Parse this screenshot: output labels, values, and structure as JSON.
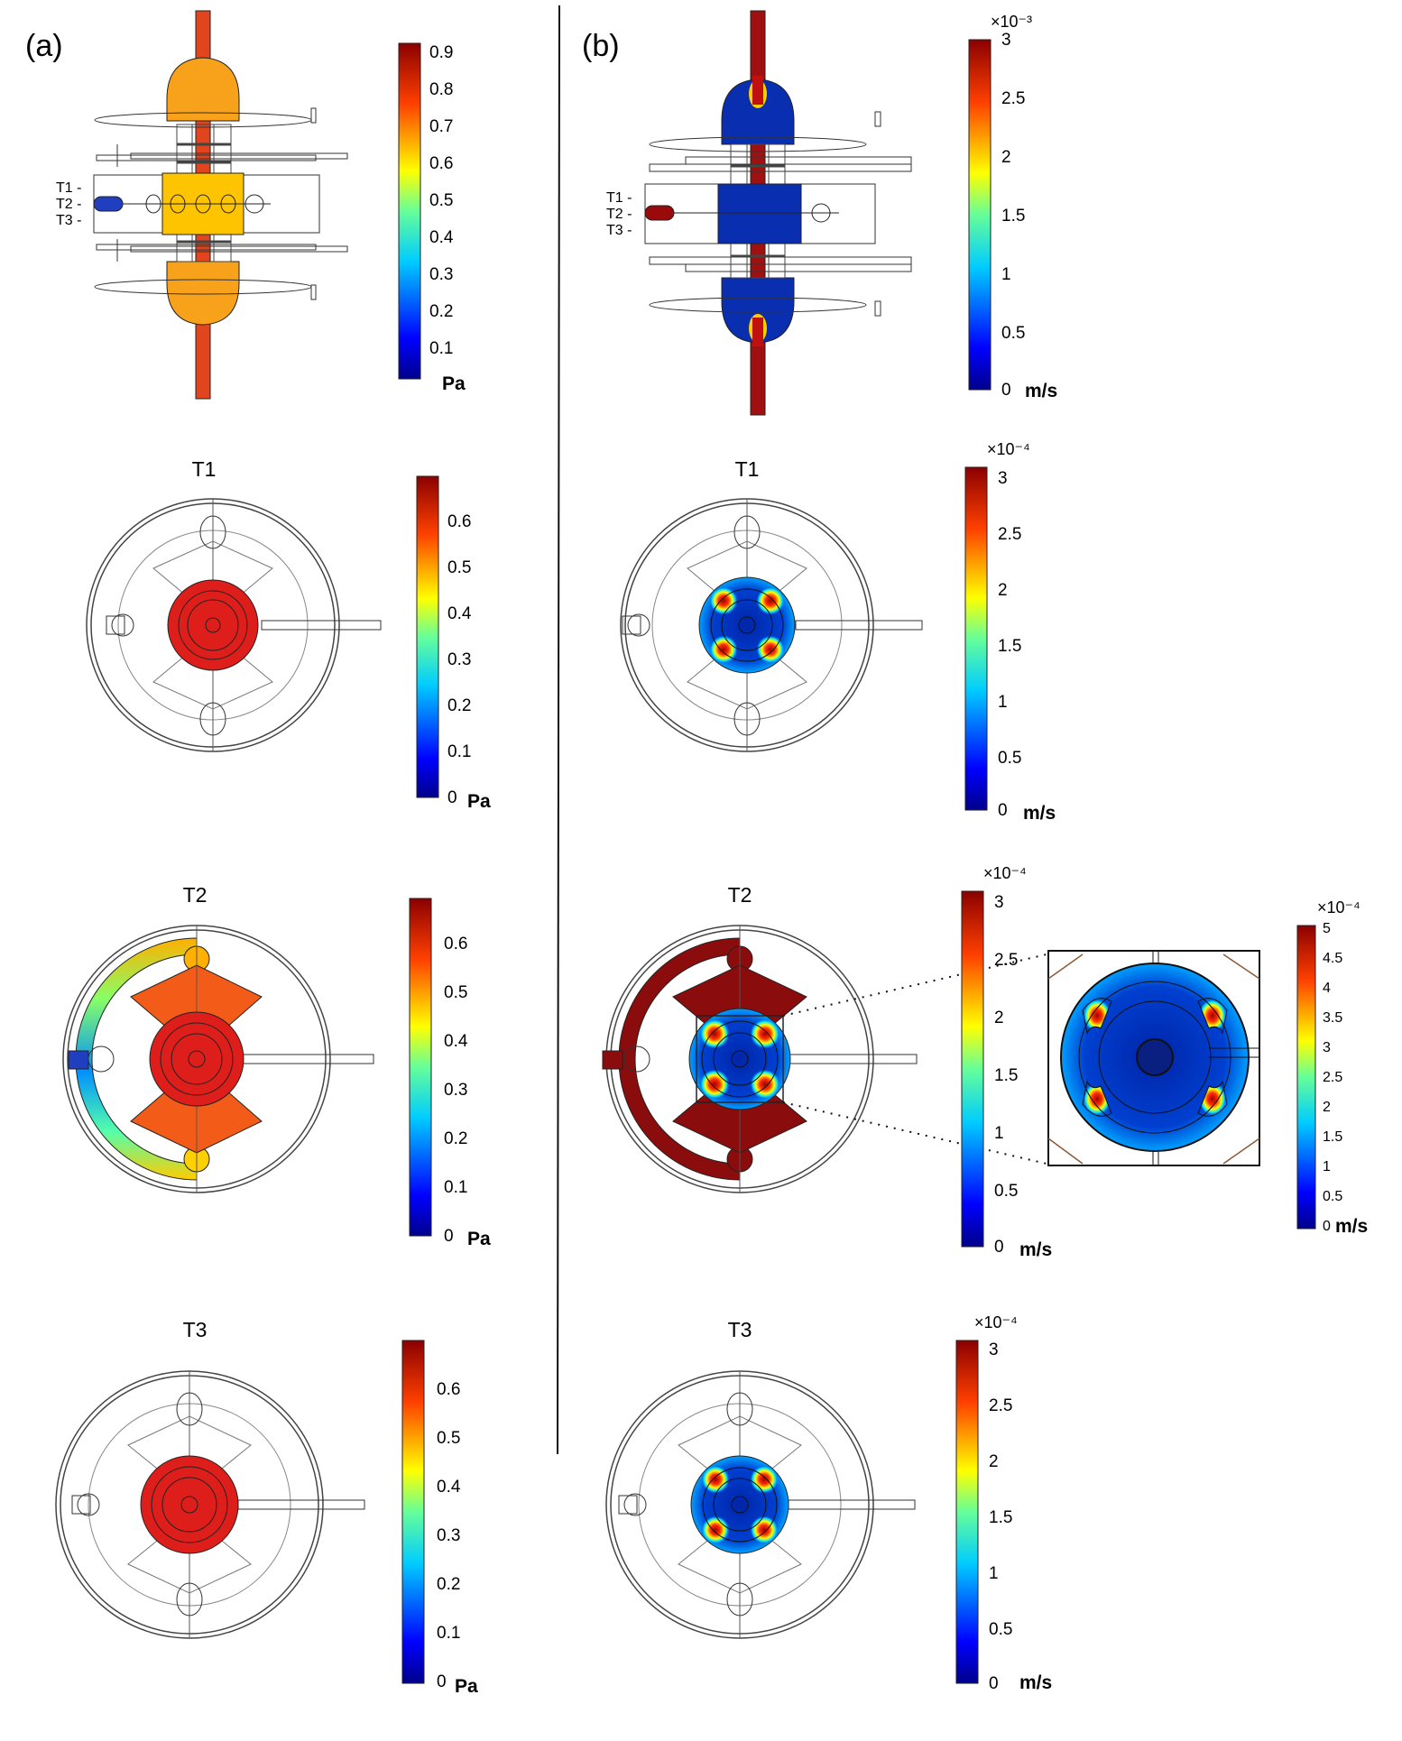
{
  "panels": {
    "a_label": "(a)",
    "b_label": "(b)"
  },
  "plane_labels": [
    "T1 -",
    "T2 -",
    "T3 -"
  ],
  "views": [
    {
      "title": "T1"
    },
    {
      "title": "T2"
    },
    {
      "title": "T3"
    }
  ],
  "colorbars": {
    "a_side": {
      "ticks": [
        "0.9",
        "0.8",
        "0.7",
        "0.6",
        "0.5",
        "0.4",
        "0.3",
        "0.2",
        "0.1"
      ],
      "unit": "Pa"
    },
    "a_t1": {
      "ticks": [
        "0.6",
        "0.5",
        "0.4",
        "0.3",
        "0.2",
        "0.1",
        "0"
      ],
      "unit": "Pa"
    },
    "a_t2": {
      "ticks": [
        "0.6",
        "0.5",
        "0.4",
        "0.3",
        "0.2",
        "0.1",
        "0"
      ],
      "unit": "Pa"
    },
    "a_t3": {
      "ticks": [
        "0.6",
        "0.5",
        "0.4",
        "0.3",
        "0.2",
        "0.1",
        "0"
      ],
      "unit": "Pa"
    },
    "b_side": {
      "exponent": "×10⁻³",
      "ticks": [
        "3",
        "2.5",
        "2",
        "1.5",
        "1",
        "0.5",
        "0"
      ],
      "unit": "m/s"
    },
    "b_t1": {
      "exponent": "×10⁻⁴",
      "ticks": [
        "3",
        "2.5",
        "2",
        "1.5",
        "1",
        "0.5",
        "0"
      ],
      "unit": "m/s"
    },
    "b_t2": {
      "exponent": "×10⁻⁴",
      "ticks": [
        "3",
        "2.5",
        "2",
        "1.5",
        "1",
        "0.5",
        "0"
      ],
      "unit": "m/s"
    },
    "b_t3": {
      "exponent": "×10⁻⁴",
      "ticks": [
        "3",
        "2.5",
        "2",
        "1.5",
        "1",
        "0.5",
        "0"
      ],
      "unit": "m/s"
    },
    "zoom": {
      "exponent": "×10⁻⁴",
      "ticks": [
        "5",
        "4.5",
        "4",
        "3.5",
        "3",
        "2.5",
        "2",
        "1.5",
        "1",
        "0.5",
        "0"
      ],
      "unit": "m/s"
    }
  },
  "colors": {
    "red": "#d8201c",
    "orange": "#f7a21a",
    "yellow": "#ffcc10",
    "blue": "#0a2ea8",
    "darkred": "#8b0c0c"
  }
}
